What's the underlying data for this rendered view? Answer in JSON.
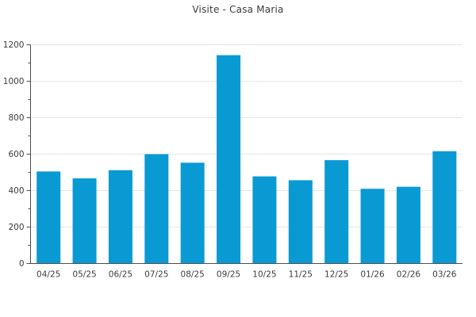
{
  "chart_data": {
    "type": "bar",
    "title": "Visite - Casa Maria",
    "categories": [
      "04/25",
      "05/25",
      "06/25",
      "07/25",
      "08/25",
      "09/25",
      "10/25",
      "11/25",
      "12/25",
      "01/26",
      "02/26",
      "03/26"
    ],
    "values": [
      505,
      467,
      512,
      600,
      553,
      1143,
      478,
      457,
      567,
      410,
      421,
      616
    ],
    "xlabel": "",
    "ylabel": "",
    "ylim": [
      0,
      1200
    ],
    "yticks": [
      0,
      200,
      400,
      600,
      800,
      1000,
      1200
    ],
    "minor_tick_step": 100,
    "grid": true,
    "legend": false,
    "colors": {
      "bar": "#0a9ad3",
      "grid": "#e5e5e5",
      "axis": "#4d4d4d",
      "text": "#3c3c3c",
      "background": "#ffffff"
    }
  }
}
